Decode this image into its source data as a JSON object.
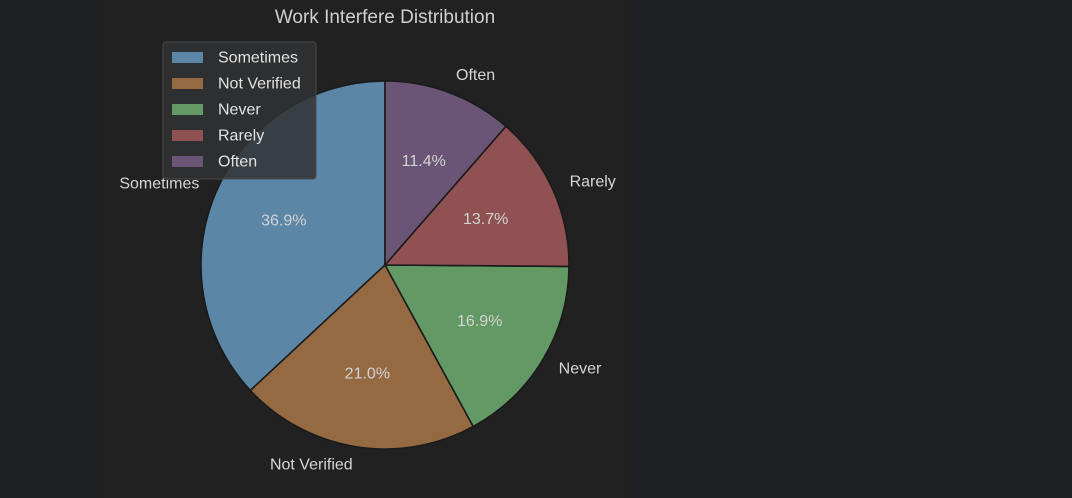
{
  "chart_data": {
    "type": "pie",
    "title": "Work Interfere Distribution",
    "slices": [
      {
        "label": "Sometimes",
        "value": 36.9,
        "pct_label": "36.9%",
        "color": "#5c86a6"
      },
      {
        "label": "Not Verified",
        "value": 21.0,
        "pct_label": "21.0%",
        "color": "#956a43"
      },
      {
        "label": "Never",
        "value": 16.9,
        "pct_label": "16.9%",
        "color": "#629964"
      },
      {
        "label": "Rarely",
        "value": 13.7,
        "pct_label": "13.7%",
        "color": "#8f5152"
      },
      {
        "label": "Often",
        "value": 11.4,
        "pct_label": "11.4%",
        "color": "#6a5577"
      }
    ],
    "start_angle": "90 degrees (top), counterclockwise",
    "legend": {
      "position": "upper-left",
      "entries": [
        "Sometimes",
        "Not Verified",
        "Never",
        "Rarely",
        "Often"
      ]
    }
  },
  "colors": {
    "background": "#1f2023",
    "plot_background": "#212121",
    "edge": "#1b1b1b",
    "text": "#d6d6d6"
  }
}
